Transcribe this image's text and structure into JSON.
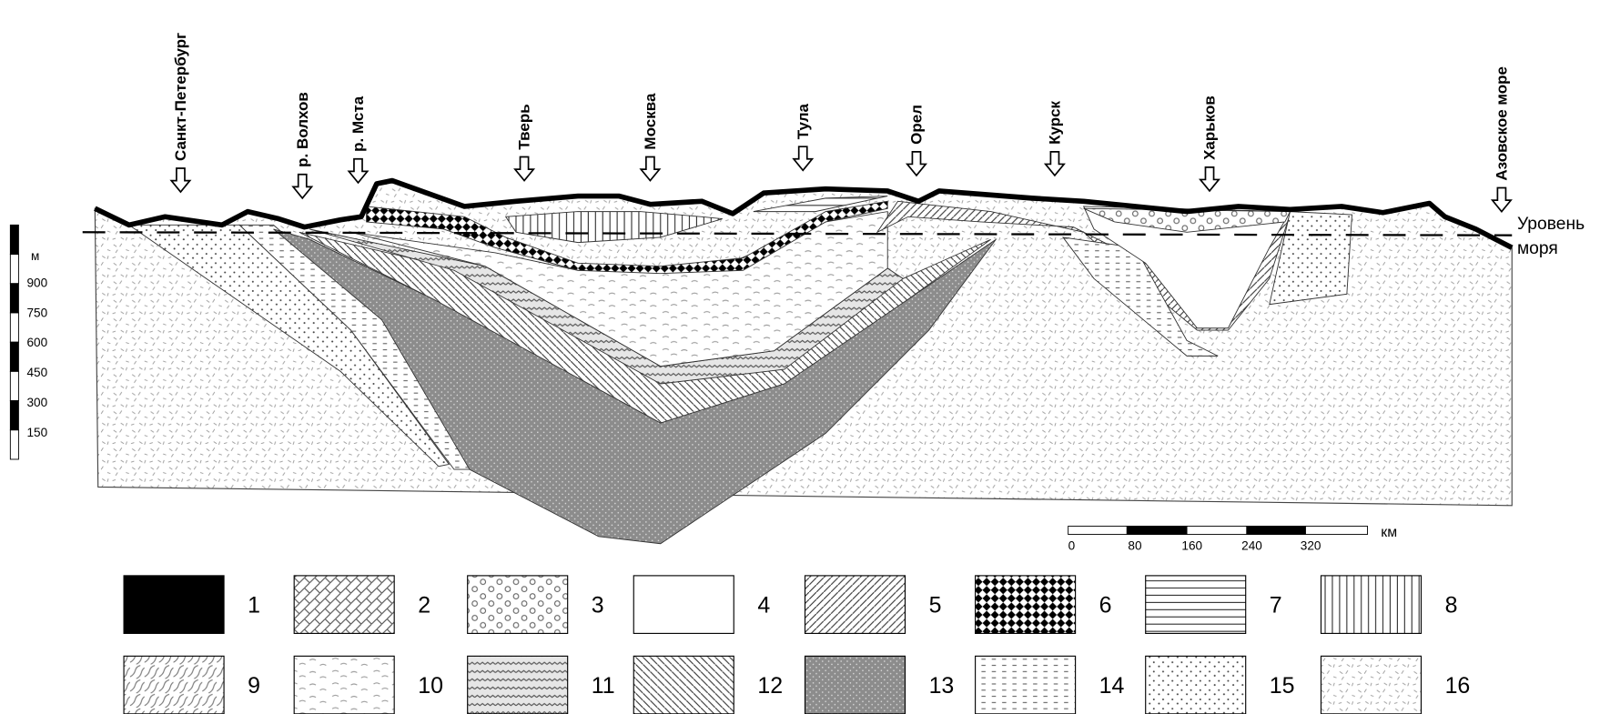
{
  "locations": [
    "Санкт-Петербург",
    "р. Волхов",
    "р. Мста",
    "Тверь",
    "Москва",
    "Тула",
    "Орел",
    "Курск",
    "Харьков",
    "Азовское море"
  ],
  "sea_level": [
    "Уровень",
    "моря"
  ],
  "vertical_scale": {
    "unit": "м",
    "ticks": [
      900,
      750,
      600,
      450,
      300,
      150
    ]
  },
  "horizontal_scale": {
    "unit": "км",
    "ticks": [
      0,
      80,
      160,
      240,
      320
    ]
  },
  "legend": [
    "1",
    "2",
    "3",
    "4",
    "5",
    "6",
    "7",
    "8",
    "9",
    "10",
    "11",
    "12",
    "13",
    "14",
    "15",
    "16"
  ]
}
